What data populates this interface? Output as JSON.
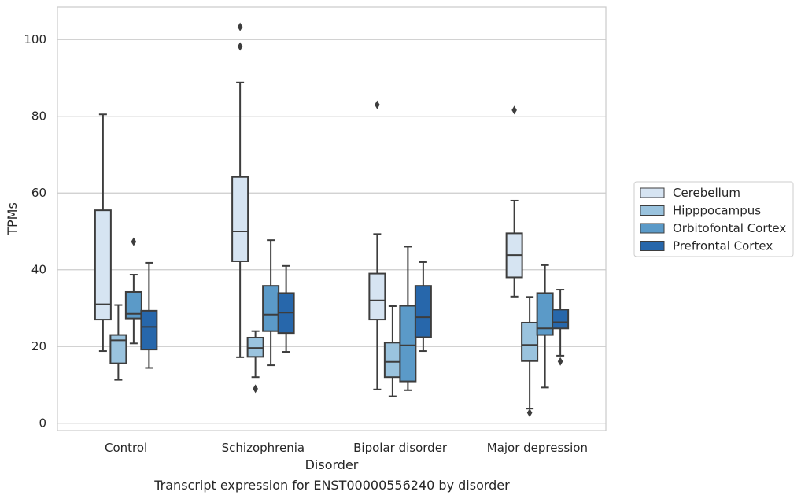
{
  "caption": "Transcript expression for ENST00000556240 by disorder",
  "chart_data": {
    "type": "box",
    "xlabel": "Disorder",
    "ylabel": "TPMs",
    "ylim": [
      -2,
      108
    ],
    "yticks": [
      0,
      20,
      40,
      60,
      80,
      100
    ],
    "grid": "horizontal",
    "legend_position": "right",
    "categories": [
      "Control",
      "Schizophrenia",
      "Bipolar disorder",
      "Major depression"
    ],
    "series": [
      {
        "name": "Cerebellum",
        "color": "#d6e4f2",
        "boxes": [
          {
            "whislo": 18.8,
            "q1": 27.0,
            "med": 31.0,
            "q3": 55.5,
            "whishi": 80.5,
            "fliers": []
          },
          {
            "whislo": 17.2,
            "q1": 42.2,
            "med": 50.0,
            "q3": 64.2,
            "whishi": 88.8,
            "fliers": [
              98.2,
              103.3
            ]
          },
          {
            "whislo": 8.8,
            "q1": 27.0,
            "med": 32.0,
            "q3": 39.0,
            "whishi": 49.3,
            "fliers": [
              83.0
            ]
          },
          {
            "whislo": 33.0,
            "q1": 38.0,
            "med": 43.8,
            "q3": 49.5,
            "whishi": 58.0,
            "fliers": [
              81.6
            ]
          }
        ]
      },
      {
        "name": "Hipppocampus",
        "color": "#9ac3de",
        "boxes": [
          {
            "whislo": 11.3,
            "q1": 15.6,
            "med": 21.6,
            "q3": 23.0,
            "whishi": 30.8,
            "fliers": []
          },
          {
            "whislo": 12.0,
            "q1": 17.3,
            "med": 19.6,
            "q3": 22.3,
            "whishi": 24.0,
            "fliers": [
              9.0
            ]
          },
          {
            "whislo": 7.0,
            "q1": 12.0,
            "med": 16.0,
            "q3": 21.0,
            "whishi": 30.5,
            "fliers": []
          },
          {
            "whislo": 3.8,
            "q1": 16.2,
            "med": 20.4,
            "q3": 26.2,
            "whishi": 32.9,
            "fliers": [
              2.7
            ]
          }
        ]
      },
      {
        "name": "Orbitofontal Cortex",
        "color": "#5b9ac8",
        "boxes": [
          {
            "whislo": 20.8,
            "q1": 27.3,
            "med": 28.5,
            "q3": 34.2,
            "whishi": 38.7,
            "fliers": [
              47.3
            ]
          },
          {
            "whislo": 15.1,
            "q1": 24.0,
            "med": 28.3,
            "q3": 35.8,
            "whishi": 47.7,
            "fliers": []
          },
          {
            "whislo": 8.6,
            "q1": 10.9,
            "med": 20.3,
            "q3": 30.6,
            "whishi": 46.0,
            "fliers": []
          },
          {
            "whislo": 9.3,
            "q1": 23.0,
            "med": 24.7,
            "q3": 33.9,
            "whishi": 41.2,
            "fliers": []
          }
        ]
      },
      {
        "name": "Prefrontal Cortex",
        "color": "#2767ab",
        "boxes": [
          {
            "whislo": 14.4,
            "q1": 19.2,
            "med": 25.1,
            "q3": 29.3,
            "whishi": 41.8,
            "fliers": []
          },
          {
            "whislo": 18.6,
            "q1": 23.5,
            "med": 28.8,
            "q3": 33.9,
            "whishi": 41.0,
            "fliers": []
          },
          {
            "whislo": 18.8,
            "q1": 22.4,
            "med": 27.6,
            "q3": 35.8,
            "whishi": 42.0,
            "fliers": []
          },
          {
            "whislo": 17.6,
            "q1": 24.7,
            "med": 26.3,
            "q3": 29.6,
            "whishi": 34.8,
            "fliers": [
              16.1
            ]
          }
        ]
      }
    ]
  }
}
